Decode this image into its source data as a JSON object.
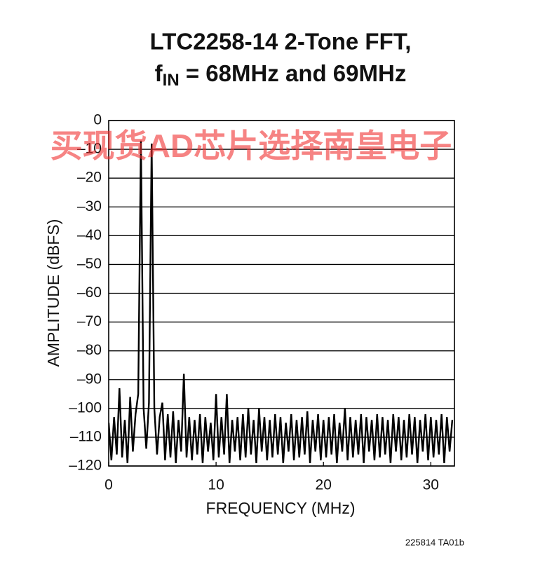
{
  "chart_data": {
    "type": "line",
    "title": "LTC2258-14 2-Tone FFT,",
    "subtitle": {
      "main": "f",
      "sub": "IN",
      "rest": " = 68MHz and 69MHz"
    },
    "xlabel": "FREQUENCY (MHz)",
    "ylabel": "AMPLITUDE (dBFS)",
    "watermark": "买现货AD芯片选择南皇电子",
    "footnote": "225814 TA01b",
    "xlim": [
      0,
      32.2
    ],
    "ylim": [
      -120,
      0
    ],
    "xticks": [
      0,
      10,
      20,
      30
    ],
    "yticks": [
      0,
      {
        "value": -10,
        "label": "–10"
      },
      {
        "value": -20,
        "label": "–20"
      },
      {
        "value": -30,
        "label": "–30"
      },
      {
        "value": -40,
        "label": "–40"
      },
      {
        "value": -50,
        "label": "–50"
      },
      {
        "value": -60,
        "label": "–60"
      },
      {
        "value": -70,
        "label": "–70"
      },
      {
        "value": -80,
        "label": "–80"
      },
      {
        "value": -90,
        "label": "–90"
      },
      {
        "value": -100,
        "label": "–100"
      },
      {
        "value": -110,
        "label": "–110"
      },
      {
        "value": -120,
        "label": "–120"
      }
    ],
    "grid": true,
    "x": [
      0,
      0.25,
      0.5,
      0.75,
      1,
      1.25,
      1.5,
      1.75,
      2,
      2.25,
      2.5,
      2.75,
      3,
      3.25,
      3.5,
      3.75,
      4,
      4.25,
      4.5,
      4.75,
      5,
      5.25,
      5.5,
      5.75,
      6,
      6.25,
      6.5,
      6.75,
      7,
      7.25,
      7.5,
      7.75,
      8,
      8.25,
      8.5,
      8.75,
      9,
      9.25,
      9.5,
      9.75,
      10,
      10.25,
      10.5,
      10.75,
      11,
      11.25,
      11.5,
      11.75,
      12,
      12.25,
      12.5,
      12.75,
      13,
      13.25,
      13.5,
      13.75,
      14,
      14.25,
      14.5,
      14.75,
      15,
      15.25,
      15.5,
      15.75,
      16,
      16.25,
      16.5,
      16.75,
      17,
      17.25,
      17.5,
      17.75,
      18,
      18.25,
      18.5,
      18.75,
      19,
      19.25,
      19.5,
      19.75,
      20,
      20.25,
      20.5,
      20.75,
      21,
      21.25,
      21.5,
      21.75,
      22,
      22.25,
      22.5,
      22.75,
      23,
      23.25,
      23.5,
      23.75,
      24,
      24.25,
      24.5,
      24.75,
      25,
      25.25,
      25.5,
      25.75,
      26,
      26.25,
      26.5,
      26.75,
      27,
      27.25,
      27.5,
      27.75,
      28,
      28.25,
      28.5,
      28.75,
      29,
      29.25,
      29.5,
      29.75,
      30,
      30.25,
      30.5,
      30.75,
      31,
      31.25,
      31.5,
      31.75,
      32
    ],
    "series": [
      {
        "color": "#000000",
        "values": [
          -105,
          -118,
          -103,
          -116,
          -93,
          -117,
          -104,
          -119,
          -96,
          -115,
          -102,
          -95,
          -7,
          -100,
          -114,
          -98,
          -8,
          -100,
          -116,
          -103,
          -98,
          -118,
          -102,
          -117,
          -101,
          -119,
          -104,
          -115,
          -88,
          -117,
          -103,
          -118,
          -104,
          -116,
          -102,
          -119,
          -103,
          -115,
          -105,
          -118,
          -95,
          -117,
          -103,
          -116,
          -95,
          -119,
          -104,
          -115,
          -103,
          -118,
          -102,
          -117,
          -100,
          -116,
          -104,
          -119,
          -100,
          -115,
          -103,
          -118,
          -104,
          -117,
          -102,
          -116,
          -103,
          -119,
          -105,
          -115,
          -102,
          -118,
          -104,
          -117,
          -103,
          -116,
          -101,
          -119,
          -104,
          -115,
          -102,
          -118,
          -104,
          -117,
          -103,
          -116,
          -102,
          -119,
          -105,
          -115,
          -100,
          -118,
          -103,
          -117,
          -104,
          -116,
          -102,
          -119,
          -103,
          -115,
          -104,
          -118,
          -102,
          -117,
          -103,
          -116,
          -104,
          -119,
          -102,
          -115,
          -103,
          -118,
          -104,
          -117,
          -102,
          -116,
          -103,
          -119,
          -104,
          -115,
          -102,
          -118,
          -103,
          -117,
          -104,
          -116,
          -102,
          -119,
          -103,
          -115,
          -104
        ]
      }
    ]
  }
}
